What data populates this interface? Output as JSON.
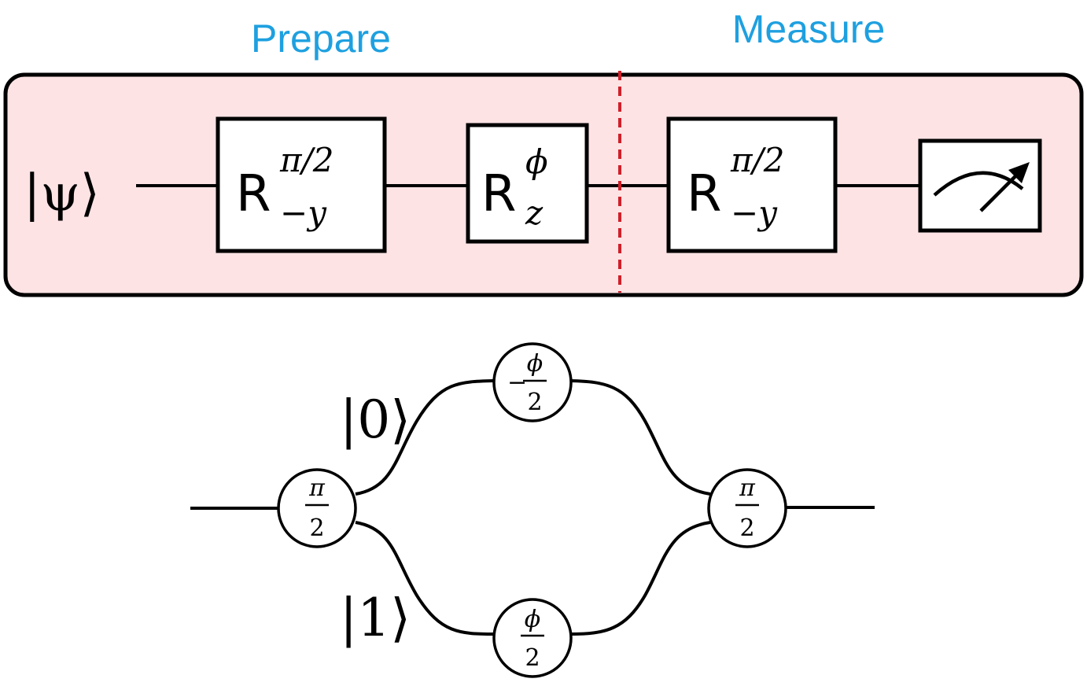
{
  "labels": {
    "prepare": "Prepare",
    "measure": "Measure"
  },
  "colors": {
    "title": "#1ea0e0",
    "panel_fill": "#fde3e4",
    "divider": "#d0202a"
  },
  "circuit": {
    "input_state": "|ψ⟩",
    "gate1": {
      "base": "R",
      "sup": "π/2",
      "sub": "−y"
    },
    "gate2": {
      "base": "R",
      "sup": "ϕ",
      "sub": "z"
    },
    "gate3": {
      "base": "R",
      "sup": "π/2",
      "sub": "−y"
    },
    "measurement": "meter-icon"
  },
  "interferometer": {
    "splitter_in": {
      "num": "π",
      "den": "2"
    },
    "upper_phase": {
      "sign": "−",
      "num": "ϕ",
      "den": "2"
    },
    "lower_phase": {
      "num": "ϕ",
      "den": "2"
    },
    "splitter_out": {
      "num": "π",
      "den": "2"
    },
    "upper_state": "|0⟩",
    "lower_state": "|1⟩"
  }
}
